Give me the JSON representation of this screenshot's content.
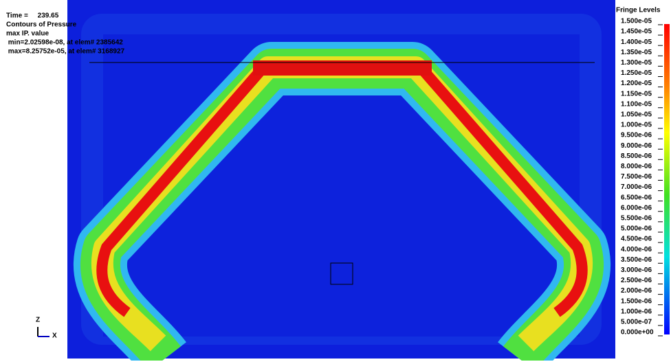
{
  "header": {
    "time": "Time =     239.65",
    "title": "Contours of Pressure",
    "subtitle": "max IP. value",
    "min": " min=2.02598e-08, at elem# 2385642",
    "max": " max=8.25752e-05, at elem# 3168927"
  },
  "fringe": {
    "title": "Fringe Levels",
    "levels": [
      "1.500e-05",
      "1.450e-05",
      "1.400e-05",
      "1.350e-05",
      "1.300e-05",
      "1.250e-05",
      "1.200e-05",
      "1.150e-05",
      "1.100e-05",
      "1.050e-05",
      "1.000e-05",
      "9.500e-06",
      "9.000e-06",
      "8.500e-06",
      "8.000e-06",
      "7.500e-06",
      "7.000e-06",
      "6.500e-06",
      "6.000e-06",
      "5.500e-06",
      "5.000e-06",
      "4.500e-06",
      "4.000e-06",
      "3.500e-06",
      "3.000e-06",
      "2.500e-06",
      "2.000e-06",
      "1.500e-06",
      "1.000e-06",
      "5.000e-07",
      "0.000e+00"
    ]
  },
  "axes": {
    "z": "Z",
    "x": "X"
  }
}
